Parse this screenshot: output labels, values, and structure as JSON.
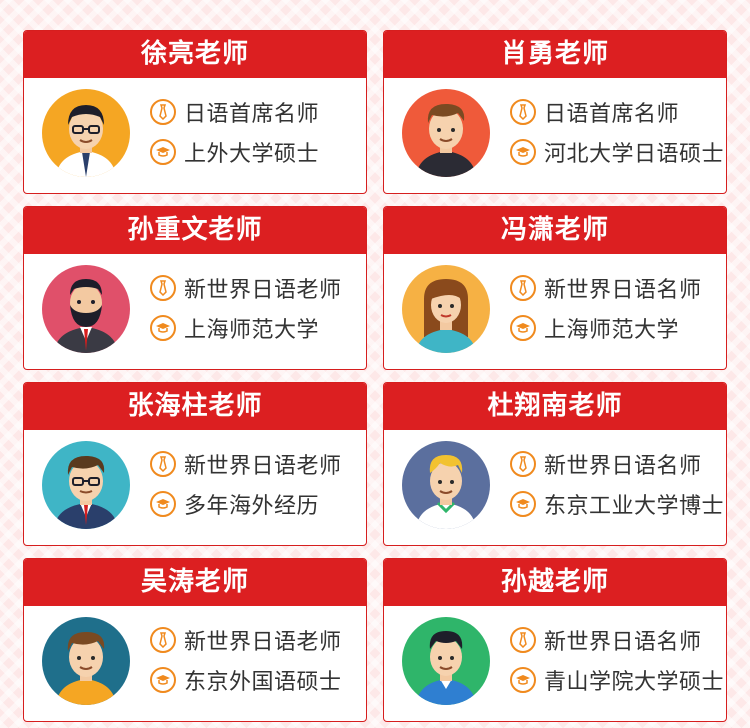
{
  "colors": {
    "header_red": "#dc1f21",
    "icon_orange": "#f08a1e",
    "text_dark": "#333333"
  },
  "teachers": [
    {
      "name": "徐亮老师",
      "line1": "日语首席名师",
      "line2": "上外大学硕士",
      "avatar_bg": "#f5a623",
      "avatar_icon": "male-glasses-avatar-icon"
    },
    {
      "name": "肖勇老师",
      "line1": "日语首席名师",
      "line2": "河北大学日语硕士",
      "avatar_bg": "#ef5a3a",
      "avatar_icon": "male-avatar-icon"
    },
    {
      "name": "孙重文老师",
      "line1": "新世界日语老师",
      "line2": "上海师范大学",
      "avatar_bg": "#e0506a",
      "avatar_icon": "bearded-male-avatar-icon"
    },
    {
      "name": "冯潇老师",
      "line1": "新世界日语名师",
      "line2": "上海师范大学",
      "avatar_bg": "#f6b144",
      "avatar_icon": "female-avatar-icon"
    },
    {
      "name": "张海柱老师",
      "line1": "新世界日语老师",
      "line2": "多年海外经历",
      "avatar_bg": "#3fb5c6",
      "avatar_icon": "male-glasses-avatar-icon"
    },
    {
      "name": "杜翔南老师",
      "line1": "新世界日语名师",
      "line2": "东京工业大学博士",
      "avatar_bg": "#5b6f9e",
      "avatar_icon": "blond-male-avatar-icon"
    },
    {
      "name": "吴涛老师",
      "line1": "新世界日语老师",
      "line2": "东京外国语硕士",
      "avatar_bg": "#1f6f8b",
      "avatar_icon": "male-avatar-icon"
    },
    {
      "name": "孙越老师",
      "line1": "新世界日语名师",
      "line2": "青山学院大学硕士",
      "avatar_bg": "#2fb56a",
      "avatar_icon": "male-avatar-icon"
    }
  ]
}
